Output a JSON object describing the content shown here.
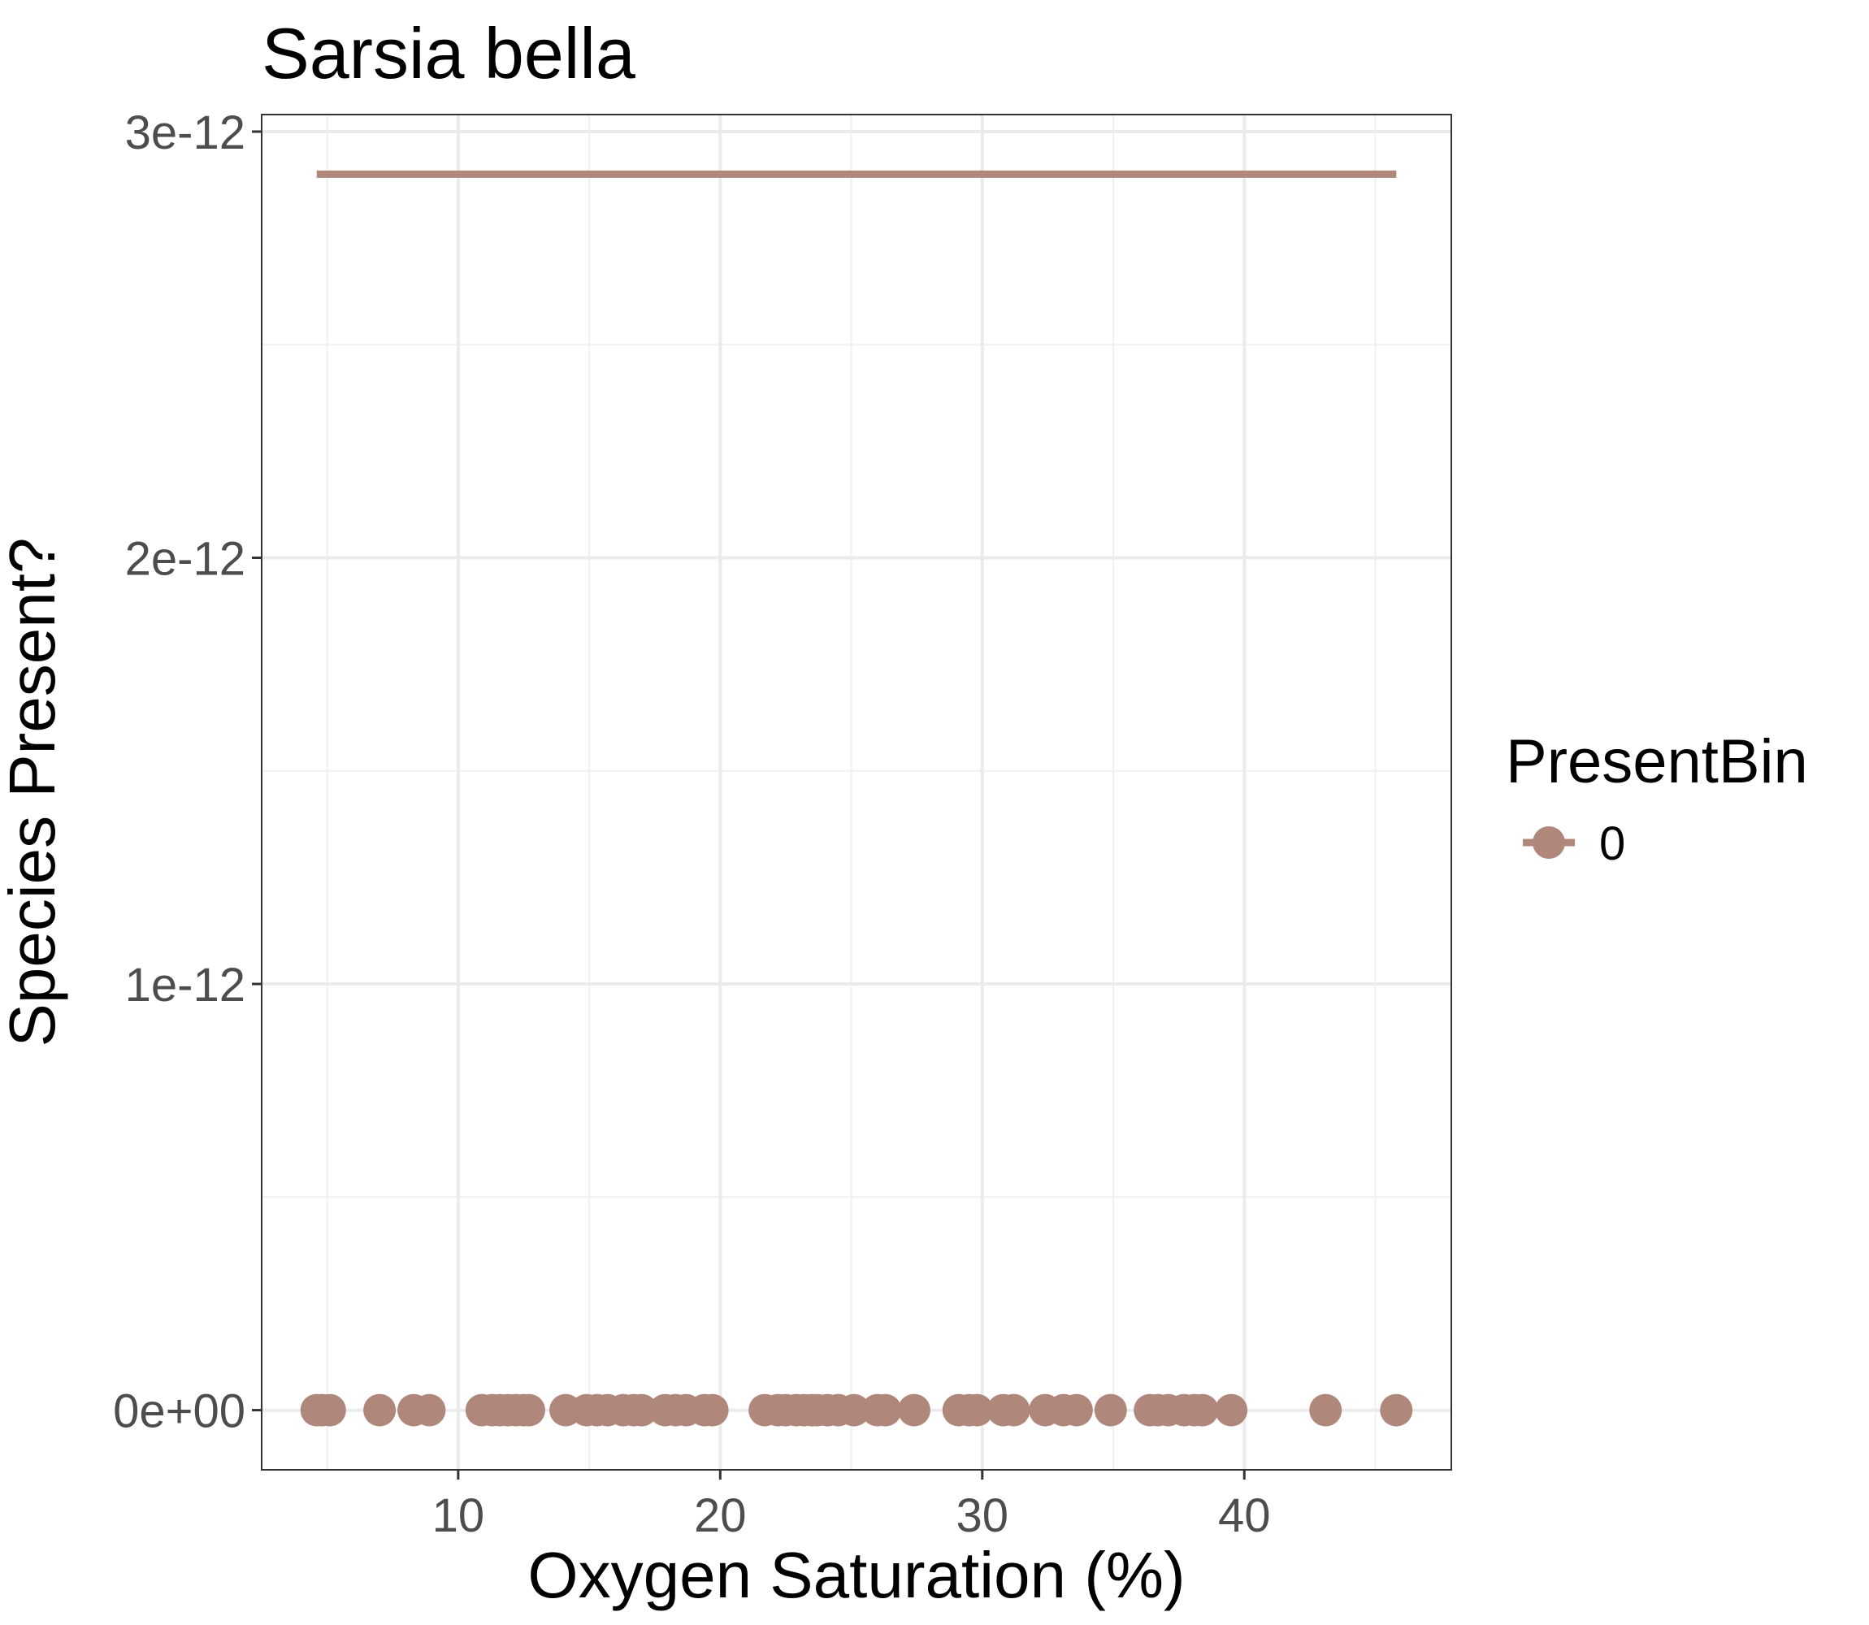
{
  "chart_data": {
    "type": "scatter",
    "title": "Sarsia bella",
    "xlabel": "Oxygen Saturation (%)",
    "ylabel": "Species Present?",
    "xlim": [
      2.5,
      47.9
    ],
    "ylim": [
      -1.4e-13,
      3.04e-12
    ],
    "x_ticks": [
      10,
      20,
      30,
      40
    ],
    "x_tick_labels": [
      "10",
      "20",
      "30",
      "40"
    ],
    "y_ticks": [
      0,
      1e-12,
      2e-12,
      3e-12
    ],
    "y_tick_labels": [
      "0e+00",
      "1e-12",
      "2e-12",
      "3e-12"
    ],
    "grid": true,
    "legend_position": "right",
    "legend": {
      "title": "PresentBin",
      "entries": [
        {
          "label": "0",
          "color": "#b0877b"
        }
      ]
    },
    "series": [
      {
        "name": "0",
        "color": "#b0877b",
        "points": {
          "x": [
            4.6,
            4.8,
            5.1,
            7.0,
            8.3,
            8.9,
            10.9,
            11.3,
            11.6,
            11.9,
            12.2,
            12.5,
            12.7,
            14.1,
            14.9,
            15.3,
            15.7,
            16.3,
            16.7,
            17.0,
            17.9,
            18.3,
            18.7,
            19.4,
            19.7,
            21.7,
            22.2,
            22.5,
            22.9,
            23.2,
            23.5,
            23.7,
            24.1,
            24.5,
            25.1,
            26.0,
            26.3,
            27.4,
            29.1,
            29.5,
            29.8,
            30.8,
            31.2,
            32.4,
            33.1,
            33.6,
            34.9,
            36.4,
            36.7,
            37.1,
            37.7,
            38.1,
            38.4,
            39.5,
            43.1,
            45.8
          ],
          "y": [
            0,
            0,
            0,
            0,
            0,
            0,
            0,
            0,
            0,
            0,
            0,
            0,
            0,
            0,
            0,
            0,
            0,
            0,
            0,
            0,
            0,
            0,
            0,
            0,
            0,
            0,
            0,
            0,
            0,
            0,
            0,
            0,
            0,
            0,
            0,
            0,
            0,
            0,
            0,
            0,
            0,
            0,
            0,
            0,
            0,
            0,
            0,
            0,
            0,
            0,
            0,
            0,
            0,
            0,
            0,
            0
          ]
        },
        "fitted_line": {
          "x": [
            4.6,
            45.8
          ],
          "y": [
            2.9e-12,
            2.9e-12
          ]
        }
      }
    ]
  }
}
